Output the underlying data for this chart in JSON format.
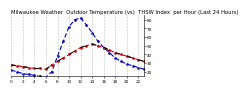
{
  "title": "Milwaukee Weather  Outdoor Temperature (vs)  THSW Index  per Hour (Last 24 Hours)",
  "hours": [
    0,
    1,
    2,
    3,
    4,
    5,
    6,
    7,
    8,
    9,
    10,
    11,
    12,
    13,
    14,
    15,
    16,
    17,
    18,
    19,
    20,
    21,
    22,
    23
  ],
  "outdoor_temp": [
    28,
    27,
    26,
    25,
    24,
    24,
    23,
    28,
    32,
    36,
    40,
    44,
    48,
    50,
    52,
    50,
    48,
    45,
    42,
    40,
    38,
    36,
    34,
    32
  ],
  "thsw_index": [
    22,
    20,
    18,
    17,
    16,
    15,
    14,
    20,
    38,
    55,
    72,
    80,
    82,
    74,
    65,
    55,
    48,
    42,
    36,
    32,
    29,
    27,
    25,
    23
  ],
  "temp_color": "#cc0000",
  "temp_color2": "#000000",
  "thsw_color": "#0000cc",
  "bg_color": "#ffffff",
  "grid_color": "#888888",
  "ylim_min": 15,
  "ylim_max": 85,
  "yticks": [
    20,
    30,
    40,
    50,
    60,
    70,
    80
  ],
  "title_fontsize": 3.8,
  "tick_fontsize": 3.0,
  "xtick_positions": [
    0,
    2,
    4,
    6,
    8,
    10,
    12,
    14,
    16,
    18,
    20,
    22
  ],
  "xtick_labels": [
    "0",
    "2",
    "4",
    "6",
    "8",
    "10",
    "12",
    "14",
    "16",
    "18",
    "20",
    "22"
  ]
}
